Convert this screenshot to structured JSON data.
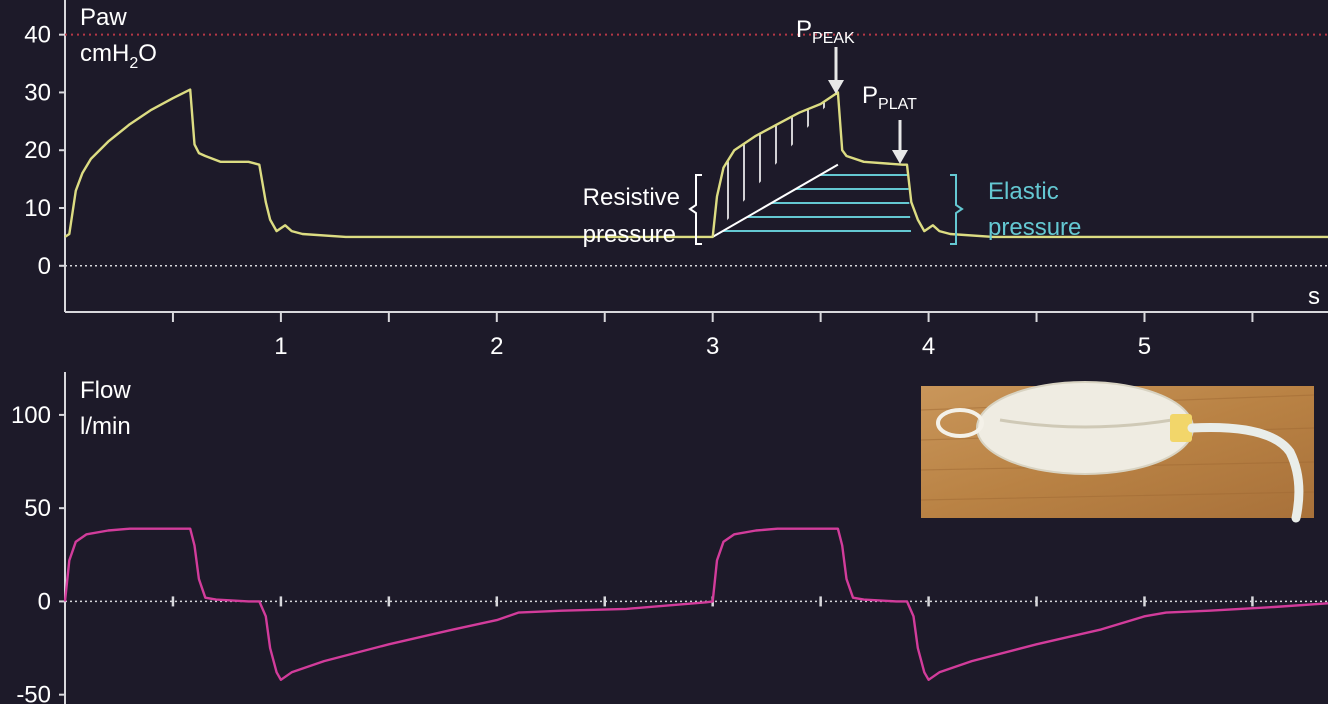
{
  "colors": {
    "background": "#1d1a29",
    "axis": "#d8d8dc",
    "pressure_trace": "#dcdc82",
    "flow_trace": "#d23c9b",
    "elastic": "#64c8d2",
    "limit_line": "#b43746",
    "annotation_text": "#ffffff"
  },
  "chart_data": [
    {
      "type": "line",
      "ylabel_line1": "Paw",
      "ylabel_line2_prefix": "cmH",
      "ylabel_line2_sub": "2",
      "ylabel_line2_suffix": "O",
      "xlabel": "s",
      "xlim": [
        0,
        5.85
      ],
      "ylim": [
        -8,
        46
      ],
      "yticks": [
        0,
        10,
        20,
        30,
        40
      ],
      "ytick_labels": [
        "0",
        "10",
        "20",
        "30",
        "40"
      ],
      "xticks": [
        1,
        2,
        3,
        4,
        5
      ],
      "xtick_labels": [
        "1",
        "2",
        "3",
        "4",
        "5"
      ],
      "limit_line": 40,
      "series": [
        {
          "points": [
            [
              0,
              5
            ],
            [
              0.02,
              5.5
            ],
            [
              0.05,
              13
            ],
            [
              0.08,
              16
            ],
            [
              0.12,
              18.5
            ],
            [
              0.2,
              21.5
            ],
            [
              0.3,
              24.5
            ],
            [
              0.4,
              27
            ],
            [
              0.5,
              29
            ],
            [
              0.58,
              30.5
            ],
            [
              0.6,
              21
            ],
            [
              0.62,
              19.5
            ],
            [
              0.65,
              19
            ],
            [
              0.72,
              18
            ],
            [
              0.85,
              18
            ],
            [
              0.9,
              17.5
            ],
            [
              0.93,
              11
            ],
            [
              0.95,
              8
            ],
            [
              0.98,
              6
            ],
            [
              1.02,
              7
            ],
            [
              1.05,
              6
            ],
            [
              1.1,
              5.5
            ],
            [
              1.3,
              5
            ],
            [
              2.0,
              5
            ],
            [
              2.97,
              5
            ],
            [
              3.0,
              5
            ],
            [
              3.02,
              12
            ],
            [
              3.05,
              17
            ],
            [
              3.1,
              20
            ],
            [
              3.2,
              22.5
            ],
            [
              3.3,
              24.5
            ],
            [
              3.4,
              26.5
            ],
            [
              3.5,
              28
            ],
            [
              3.58,
              30
            ],
            [
              3.6,
              20
            ],
            [
              3.62,
              19
            ],
            [
              3.7,
              18
            ],
            [
              3.88,
              17.5
            ],
            [
              3.9,
              17.5
            ],
            [
              3.92,
              11
            ],
            [
              3.95,
              8
            ],
            [
              3.98,
              6
            ],
            [
              4.02,
              7
            ],
            [
              4.05,
              6
            ],
            [
              4.1,
              5.5
            ],
            [
              4.3,
              5
            ],
            [
              5.85,
              5
            ]
          ]
        }
      ],
      "annotations": {
        "peak_label": "P",
        "peak_sub": "PEAK",
        "plat_label": "P",
        "plat_sub": "PLAT",
        "resistive_line1": "Resistive",
        "resistive_line2": "pressure",
        "elastic_line1": "Elastic",
        "elastic_line2": "pressure"
      }
    },
    {
      "type": "line",
      "ylabel_line1": "Flow",
      "ylabel_line2": "l/min",
      "xlim": [
        0,
        5.85
      ],
      "ylim": [
        -55,
        123
      ],
      "yticks": [
        -50,
        0,
        50,
        100
      ],
      "ytick_labels": [
        "-50",
        "0",
        "50",
        "100"
      ],
      "series": [
        {
          "points": [
            [
              0,
              0
            ],
            [
              0.02,
              22
            ],
            [
              0.05,
              32
            ],
            [
              0.1,
              36
            ],
            [
              0.2,
              38
            ],
            [
              0.3,
              39
            ],
            [
              0.5,
              39
            ],
            [
              0.58,
              39
            ],
            [
              0.6,
              30
            ],
            [
              0.62,
              12
            ],
            [
              0.65,
              2
            ],
            [
              0.7,
              1
            ],
            [
              0.85,
              0
            ],
            [
              0.9,
              0
            ],
            [
              0.93,
              -8
            ],
            [
              0.95,
              -25
            ],
            [
              0.98,
              -38
            ],
            [
              1.0,
              -42
            ],
            [
              1.05,
              -38
            ],
            [
              1.2,
              -32
            ],
            [
              1.5,
              -23
            ],
            [
              1.8,
              -15
            ],
            [
              2.0,
              -10
            ],
            [
              2.1,
              -6
            ],
            [
              2.3,
              -5
            ],
            [
              2.6,
              -4
            ],
            [
              2.97,
              -0.5
            ],
            [
              3.0,
              0
            ],
            [
              3.02,
              22
            ],
            [
              3.05,
              32
            ],
            [
              3.1,
              36
            ],
            [
              3.2,
              38
            ],
            [
              3.3,
              39
            ],
            [
              3.5,
              39
            ],
            [
              3.58,
              39
            ],
            [
              3.6,
              30
            ],
            [
              3.62,
              12
            ],
            [
              3.65,
              2
            ],
            [
              3.7,
              1
            ],
            [
              3.85,
              0
            ],
            [
              3.9,
              0
            ],
            [
              3.93,
              -8
            ],
            [
              3.95,
              -25
            ],
            [
              3.98,
              -38
            ],
            [
              4.0,
              -42
            ],
            [
              4.05,
              -38
            ],
            [
              4.2,
              -32
            ],
            [
              4.5,
              -23
            ],
            [
              4.8,
              -15
            ],
            [
              5.0,
              -8
            ],
            [
              5.1,
              -6
            ],
            [
              5.3,
              -5
            ],
            [
              5.6,
              -3
            ],
            [
              5.85,
              -1
            ]
          ]
        }
      ],
      "inset_image": "ventilation-bag-photo"
    }
  ]
}
